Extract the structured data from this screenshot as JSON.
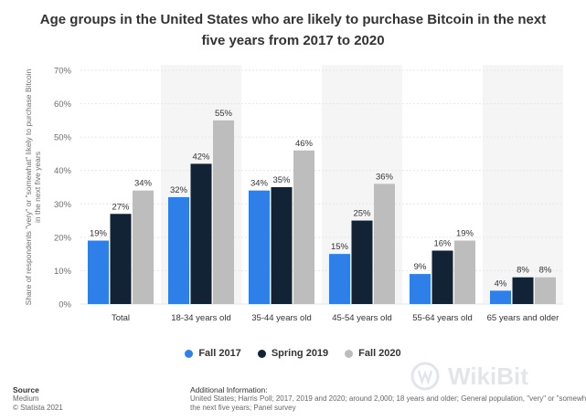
{
  "title": "Age groups in the United States who are likely to purchase Bitcoin in the next five years from 2017 to 2020",
  "colors": {
    "fall2017": "#2f7fe8",
    "spring2019": "#122336",
    "fall2020": "#bdbdbd",
    "band": "#f5f5f5",
    "grid": "#e6e6e6"
  },
  "legend": [
    {
      "label": "Fall 2017",
      "color": "#2f7fe8"
    },
    {
      "label": "Spring 2019",
      "color": "#122336"
    },
    {
      "label": "Fall 2020",
      "color": "#bdbdbd"
    }
  ],
  "footer": {
    "source_heading": "Source",
    "source_name": "Medium",
    "copyright": "© Statista 2021",
    "info_heading": "Additional Information:",
    "info_line1": "United States; Harris Poll; 2017, 2019 and 2020; around 2,000; 18 years and older; General population, \"very\" or \"somewhat\" likely to purchase Bitcoin in",
    "info_line2": "the next five years; Panel survey"
  },
  "watermark": {
    "text": "WikiBit",
    "icon": "wikibit-logo-icon"
  },
  "chart_data": {
    "type": "bar",
    "categories": [
      "Total",
      "18-34 years old",
      "35-44 years old",
      "45-54 years old",
      "55-64 years old",
      "65 years and older"
    ],
    "series": [
      {
        "name": "Fall 2017",
        "values": [
          19,
          32,
          34,
          15,
          9,
          4
        ]
      },
      {
        "name": "Spring 2019",
        "values": [
          27,
          42,
          35,
          25,
          16,
          8
        ]
      },
      {
        "name": "Fall 2020",
        "values": [
          34,
          55,
          46,
          36,
          19,
          8
        ]
      }
    ],
    "value_suffix": "%",
    "ylabel": "Share of respondents \"very\" or \"somewhat\" likely to purchase Bitcoin in the next five years",
    "ylim": [
      0,
      70
    ],
    "yticks": [
      0,
      10,
      20,
      30,
      40,
      50,
      60,
      70
    ],
    "ytick_labels": [
      "0%",
      "10%",
      "20%",
      "30%",
      "40%",
      "50%",
      "60%",
      "70%"
    ],
    "grid": true,
    "legend_position": "bottom"
  }
}
